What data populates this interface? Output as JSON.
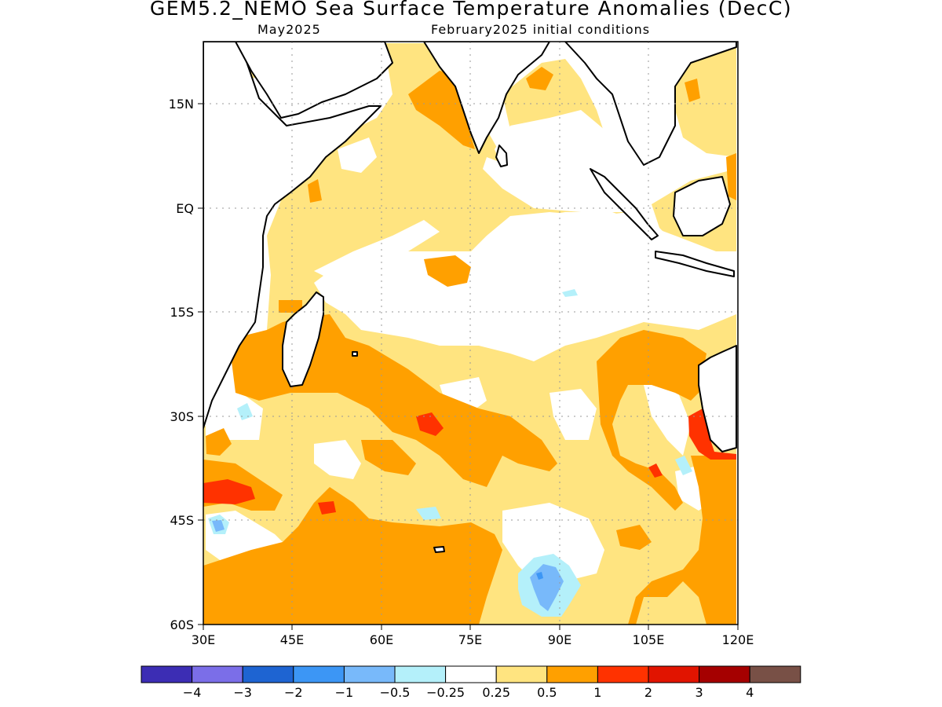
{
  "title": "GEM5.2_NEMO Sea Surface Temperature Anomalies (DecC)",
  "subtitle_left": "May2025",
  "subtitle_right": "February2025 initial conditions",
  "map": {
    "region": "Indian Ocean",
    "lon_range": [
      30,
      120
    ],
    "lat_range": [
      -60,
      24
    ],
    "grid": "dotted",
    "lon_ticks": [
      {
        "value": 30,
        "label": "30E"
      },
      {
        "value": 45,
        "label": "45E"
      },
      {
        "value": 60,
        "label": "60E"
      },
      {
        "value": 75,
        "label": "75E"
      },
      {
        "value": 90,
        "label": "90E"
      },
      {
        "value": 105,
        "label": "105E"
      },
      {
        "value": 120,
        "label": "120E"
      }
    ],
    "lat_ticks": [
      {
        "value": 15,
        "label": "15N"
      },
      {
        "value": 0,
        "label": "EQ"
      },
      {
        "value": -15,
        "label": "15S"
      },
      {
        "value": -30,
        "label": "30S"
      },
      {
        "value": -45,
        "label": "45S"
      },
      {
        "value": -60,
        "label": "60S"
      }
    ],
    "colors": {
      "neutral": "#ffffff",
      "warm_0_25": "#ffe480",
      "warm_0_5": "#ffa000",
      "warm_1": "#ff3200",
      "cool_0_25": "#b4f0fa",
      "cool_0_5": "#78b9fa",
      "cool_1": "#3c96f5",
      "land_outline": "#000000"
    }
  },
  "colorbar": {
    "colors": [
      "#3c2db4",
      "#7b6ee8",
      "#1e64d2",
      "#3c96f5",
      "#78b9fa",
      "#b4f0fa",
      "#ffffff",
      "#ffe480",
      "#ffa000",
      "#ff3200",
      "#e11400",
      "#a50000",
      "#785046"
    ],
    "labels": [
      "-4",
      "-3",
      "-2",
      "-1",
      "-0.5",
      "-0.25",
      "0.25",
      "0.5",
      "1",
      "2",
      "3",
      "4"
    ]
  }
}
